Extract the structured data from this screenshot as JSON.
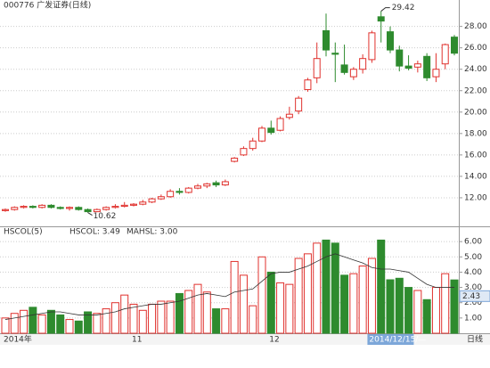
{
  "chart_data": [
    {
      "type": "candlestick",
      "title": "000776 广发证券(日线)",
      "categories": [
        "2014年",
        null,
        null,
        null,
        null,
        null,
        null,
        null,
        null,
        null,
        null,
        null,
        null,
        null,
        "11",
        null,
        null,
        null,
        null,
        null,
        null,
        null,
        null,
        null,
        null,
        null,
        null,
        null,
        null,
        "12",
        null,
        null,
        null,
        null,
        null,
        null,
        null,
        null,
        null,
        null,
        "2014/12/15/—",
        null,
        null,
        null,
        null,
        null,
        null,
        null,
        null,
        null
      ],
      "open": [
        10.8,
        10.9,
        11.1,
        11.2,
        11.1,
        11.3,
        11.1,
        11.0,
        11.1,
        10.9,
        10.7,
        10.9,
        11.1,
        11.2,
        11.3,
        11.4,
        11.6,
        11.9,
        12.1,
        12.6,
        12.5,
        12.9,
        13.1,
        13.4,
        13.2,
        15.4,
        16.0,
        16.6,
        17.3,
        18.5,
        18.3,
        19.5,
        20.1,
        22.1,
        23.2,
        27.6,
        25.5,
        24.4,
        23.3,
        24.0,
        24.9,
        28.9,
        27.5,
        25.8,
        24.3,
        24.2,
        25.2,
        23.3,
        24.5,
        27.0
      ],
      "high": [
        11.0,
        11.2,
        11.3,
        11.3,
        11.4,
        11.4,
        11.2,
        11.2,
        11.2,
        11.0,
        11.0,
        11.2,
        11.4,
        11.6,
        11.5,
        11.8,
        12.0,
        12.3,
        12.8,
        12.9,
        13.0,
        13.3,
        13.4,
        13.6,
        13.7,
        15.8,
        16.8,
        17.6,
        18.7,
        19.2,
        19.6,
        20.5,
        21.5,
        23.2,
        26.5,
        29.2,
        26.5,
        26.3,
        24.2,
        25.4,
        27.6,
        29.42,
        28.0,
        26.2,
        25.3,
        24.8,
        25.5,
        25.5,
        26.4,
        27.2
      ],
      "low": [
        10.7,
        10.8,
        11.0,
        11.0,
        11.0,
        11.0,
        10.9,
        10.8,
        10.8,
        10.62,
        10.65,
        10.8,
        11.0,
        11.1,
        11.2,
        11.3,
        11.5,
        11.8,
        12.0,
        12.3,
        12.4,
        12.8,
        12.9,
        13.0,
        13.1,
        15.3,
        15.9,
        16.4,
        17.2,
        17.9,
        18.2,
        19.3,
        19.8,
        21.9,
        22.7,
        25.2,
        22.8,
        23.5,
        23.0,
        23.6,
        24.6,
        26.5,
        25.5,
        23.8,
        23.9,
        23.7,
        22.9,
        22.8,
        24.0,
        25.3
      ],
      "close": [
        10.9,
        11.1,
        11.2,
        11.1,
        11.3,
        11.1,
        11.0,
        11.1,
        10.9,
        10.7,
        10.9,
        11.1,
        11.2,
        11.3,
        11.4,
        11.6,
        11.9,
        12.1,
        12.6,
        12.5,
        12.9,
        13.1,
        13.3,
        13.2,
        13.5,
        15.7,
        16.6,
        17.3,
        18.5,
        18.1,
        19.4,
        19.8,
        21.3,
        23.0,
        25.0,
        25.8,
        25.4,
        23.7,
        24.0,
        25.0,
        27.4,
        28.5,
        25.8,
        24.3,
        24.1,
        24.5,
        23.2,
        24.0,
        26.3,
        25.5
      ],
      "up_color": "#e0312d",
      "down_color": "#2e8b2e",
      "high_label": "29.42",
      "low_label": "10.62",
      "period_label": "日线",
      "ylim": [
        9.5,
        29.8
      ],
      "yticks": [
        {
          "value": 12,
          "label": "12.00"
        },
        {
          "value": 14,
          "label": "14.00"
        },
        {
          "value": 16,
          "label": "16.00"
        },
        {
          "value": 18,
          "label": "18.00"
        },
        {
          "value": 20,
          "label": "20.00"
        },
        {
          "value": 22,
          "label": "22.00"
        },
        {
          "value": 24,
          "label": "24.00"
        },
        {
          "value": 26,
          "label": "26.00"
        },
        {
          "value": 28,
          "label": "28.00"
        }
      ],
      "grid": true
    },
    {
      "type": "volume",
      "title": "HSCOL(5)",
      "legend": [
        "HSCOL: 3.49",
        "MAHSL: 3.00"
      ],
      "values": [
        1.0,
        1.3,
        1.5,
        1.7,
        1.2,
        1.5,
        1.2,
        0.9,
        0.8,
        1.4,
        1.3,
        1.6,
        2.0,
        2.5,
        1.9,
        1.5,
        1.9,
        2.1,
        2.1,
        2.6,
        2.8,
        3.2,
        2.7,
        1.6,
        1.6,
        4.7,
        3.8,
        1.8,
        5.0,
        4.0,
        3.3,
        3.2,
        4.9,
        5.2,
        5.9,
        6.1,
        5.9,
        3.8,
        3.9,
        4.4,
        4.9,
        6.1,
        3.5,
        3.6,
        3.0,
        2.8,
        2.2,
        3.0,
        3.9,
        3.49
      ],
      "ma": [
        0.9,
        1.0,
        1.1,
        1.2,
        1.3,
        1.4,
        1.4,
        1.3,
        1.2,
        1.2,
        1.2,
        1.3,
        1.4,
        1.6,
        1.7,
        1.8,
        1.9,
        1.9,
        2.0,
        2.1,
        2.3,
        2.5,
        2.6,
        2.5,
        2.4,
        2.7,
        2.8,
        2.9,
        3.4,
        3.9,
        4.0,
        4.0,
        4.2,
        4.4,
        4.7,
        5.0,
        5.2,
        5.0,
        4.8,
        4.6,
        4.3,
        4.2,
        4.2,
        4.1,
        4.0,
        3.6,
        3.2,
        3.0,
        3.0,
        3.0
      ],
      "ma_color": "#333333",
      "cursor_label": {
        "value": 2.43,
        "label": "2.43"
      },
      "ylim": [
        0,
        6.3
      ],
      "yticks": [
        {
          "value": 1,
          "label": "1.00"
        },
        {
          "value": 2,
          "label": "2.00"
        },
        {
          "value": 3,
          "label": "3.00"
        },
        {
          "value": 4,
          "label": "4.00"
        },
        {
          "value": 5,
          "label": "5.00"
        },
        {
          "value": 6,
          "label": "6.00"
        }
      ],
      "grid": true
    }
  ]
}
